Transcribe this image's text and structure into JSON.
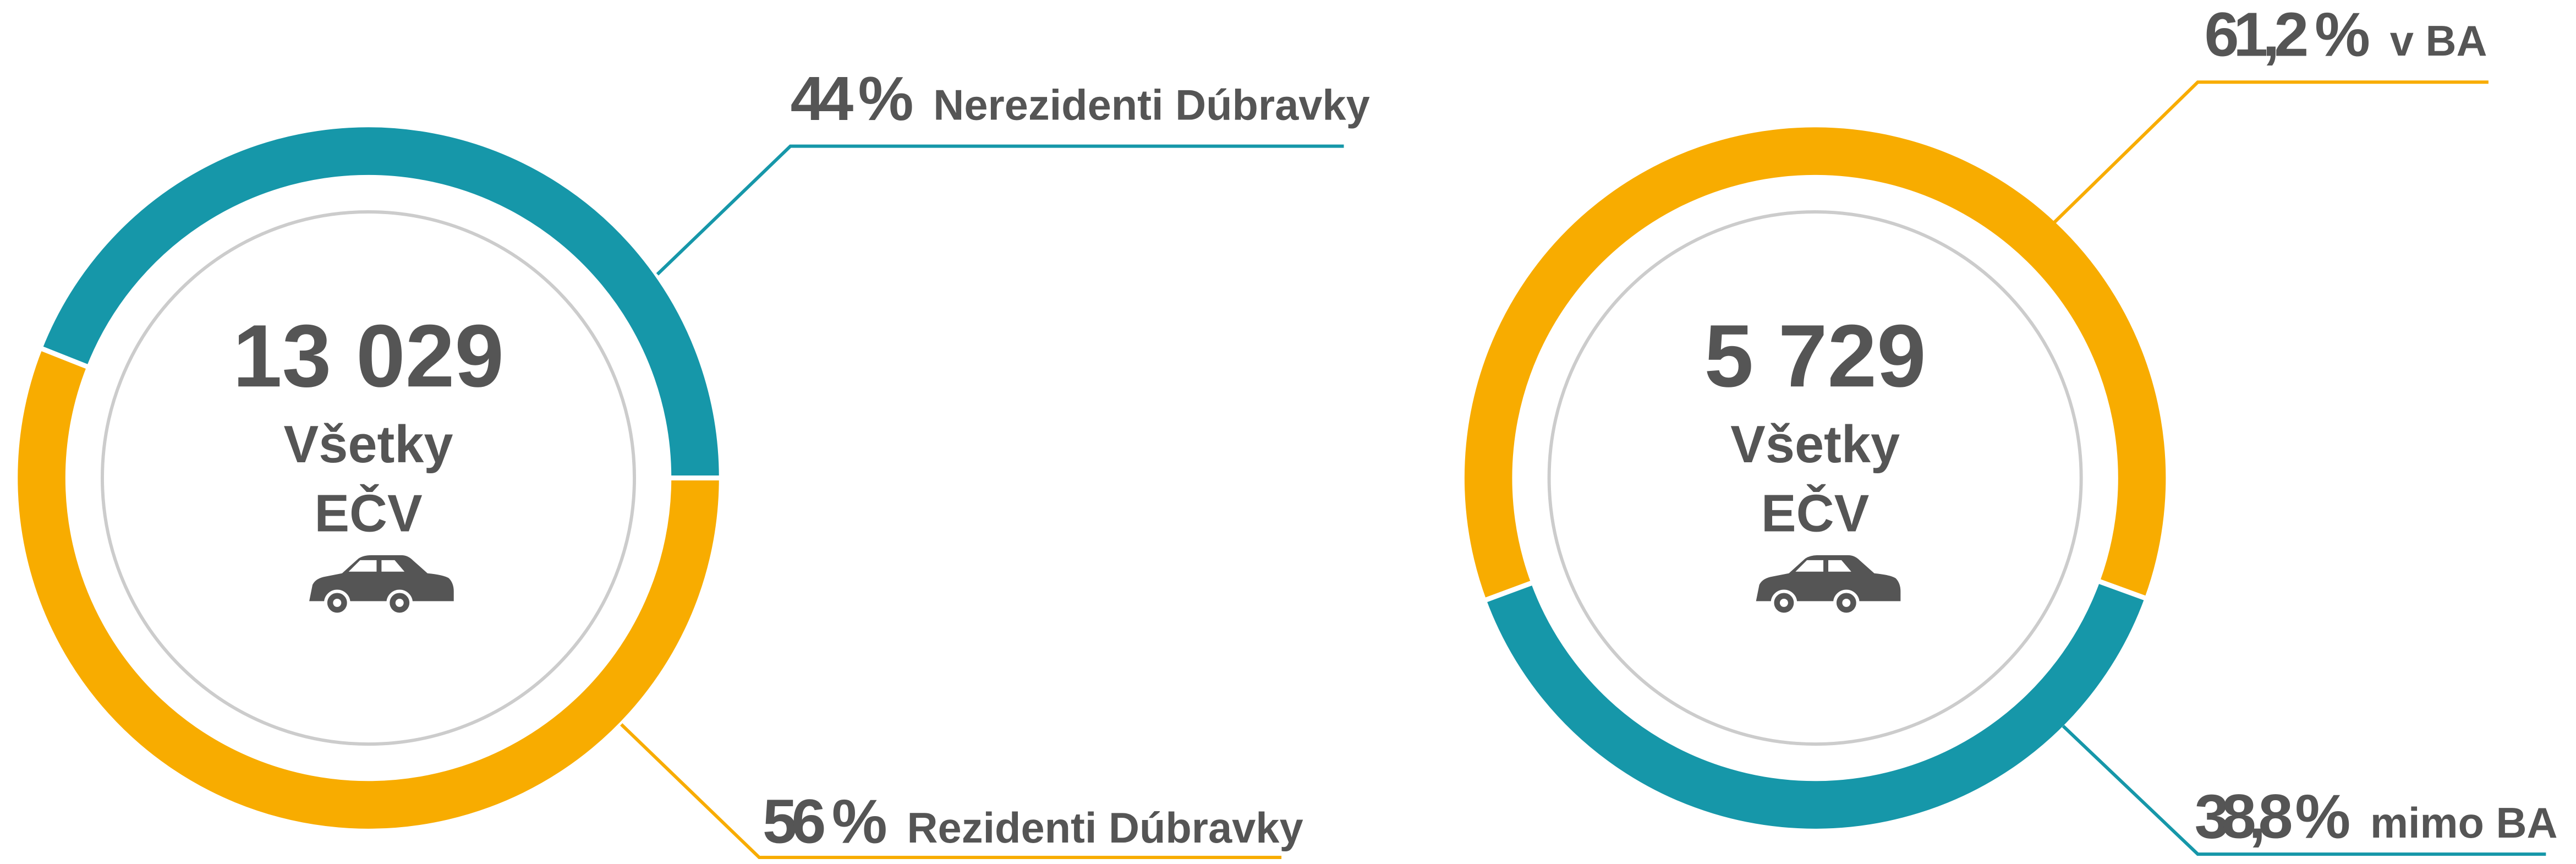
{
  "chart_data": [
    {
      "type": "donut",
      "center_value": "13 029",
      "center_lines": [
        "Všetky",
        "EČV"
      ],
      "categories": [
        "Nerezidenti Dúbravky",
        "Rezidenti Dúbravky"
      ],
      "values": [
        44,
        56
      ],
      "value_labels": [
        "44 %",
        "56 %"
      ],
      "colors": [
        "#1697a9",
        "#f8ac00"
      ]
    },
    {
      "type": "donut",
      "center_value": "5 729",
      "center_lines": [
        "Všetky",
        "EČV"
      ],
      "categories": [
        "v BA",
        "mimo BA"
      ],
      "values": [
        61.2,
        38.8
      ],
      "value_labels": [
        "61,2 %",
        "38,8 %"
      ],
      "colors": [
        "#f8ac00",
        "#1697a9"
      ]
    }
  ]
}
